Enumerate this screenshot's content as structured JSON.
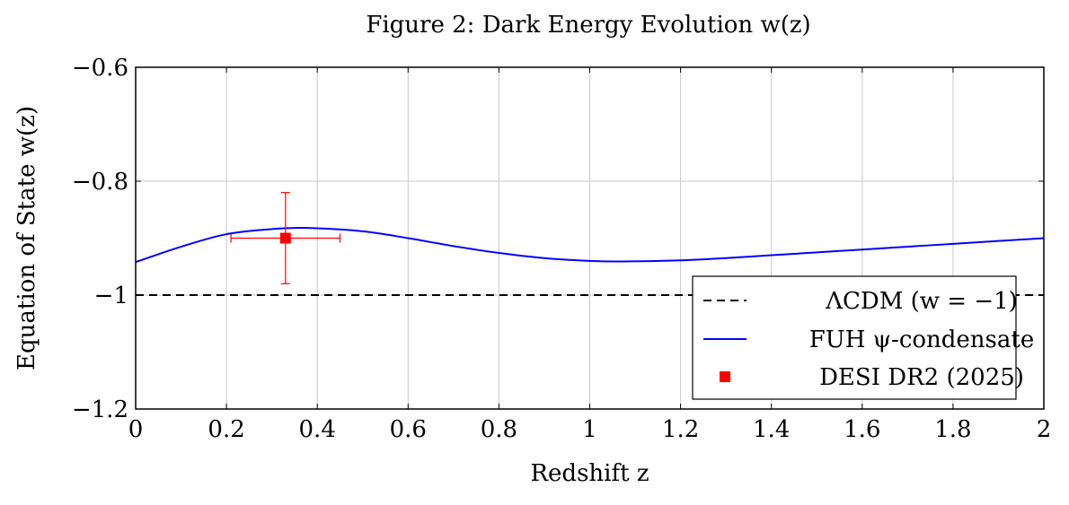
{
  "chart_data": {
    "type": "line",
    "title": "Figure 2: Dark Energy Evolution w(z)",
    "xlabel": "Redshift z",
    "ylabel": "Equation of State w(z)",
    "xlim": [
      0,
      2
    ],
    "ylim": [
      -1.2,
      -0.6
    ],
    "x_ticks": [
      0,
      0.2,
      0.4,
      0.6,
      0.8,
      1,
      1.2,
      1.4,
      1.6,
      1.8,
      2
    ],
    "x_tick_labels": [
      "0",
      "0.2",
      "0.4",
      "0.6",
      "0.8",
      "1",
      "1.2",
      "1.4",
      "1.6",
      "1.8",
      "2"
    ],
    "y_ticks": [
      -1.2,
      -1,
      -0.8,
      -0.6
    ],
    "y_tick_labels": [
      "−1.2",
      "−1",
      "−0.8",
      "−0.6"
    ],
    "grid": true,
    "legend_position": "bottom-right",
    "series": [
      {
        "name": "ΛCDM (w = −1)",
        "style": "dashed",
        "color": "#000000",
        "x": [
          0,
          2
        ],
        "y": [
          -1.0,
          -1.0
        ]
      },
      {
        "name": "FUH ψ-condensate",
        "style": "solid",
        "color": "#0000ff",
        "x": [
          0,
          0.1,
          0.2,
          0.3,
          0.38,
          0.5,
          0.6,
          0.7,
          0.8,
          0.9,
          1.0,
          1.07,
          1.2,
          1.3,
          1.4,
          1.5,
          1.6,
          1.7,
          1.8,
          1.9,
          2.0
        ],
        "y": [
          -0.942,
          -0.915,
          -0.893,
          -0.884,
          -0.882,
          -0.888,
          -0.9,
          -0.914,
          -0.926,
          -0.935,
          -0.94,
          -0.941,
          -0.939,
          -0.935,
          -0.93,
          -0.925,
          -0.92,
          -0.915,
          -0.91,
          -0.905,
          -0.9
        ]
      },
      {
        "name": "DESI DR2 (2025)",
        "style": "marker",
        "color": "#ff0000",
        "points": [
          {
            "x": 0.33,
            "y": -0.9,
            "xerr_low": 0.12,
            "xerr_high": 0.12,
            "yerr_low": 0.08,
            "yerr_high": 0.08
          }
        ]
      }
    ]
  }
}
